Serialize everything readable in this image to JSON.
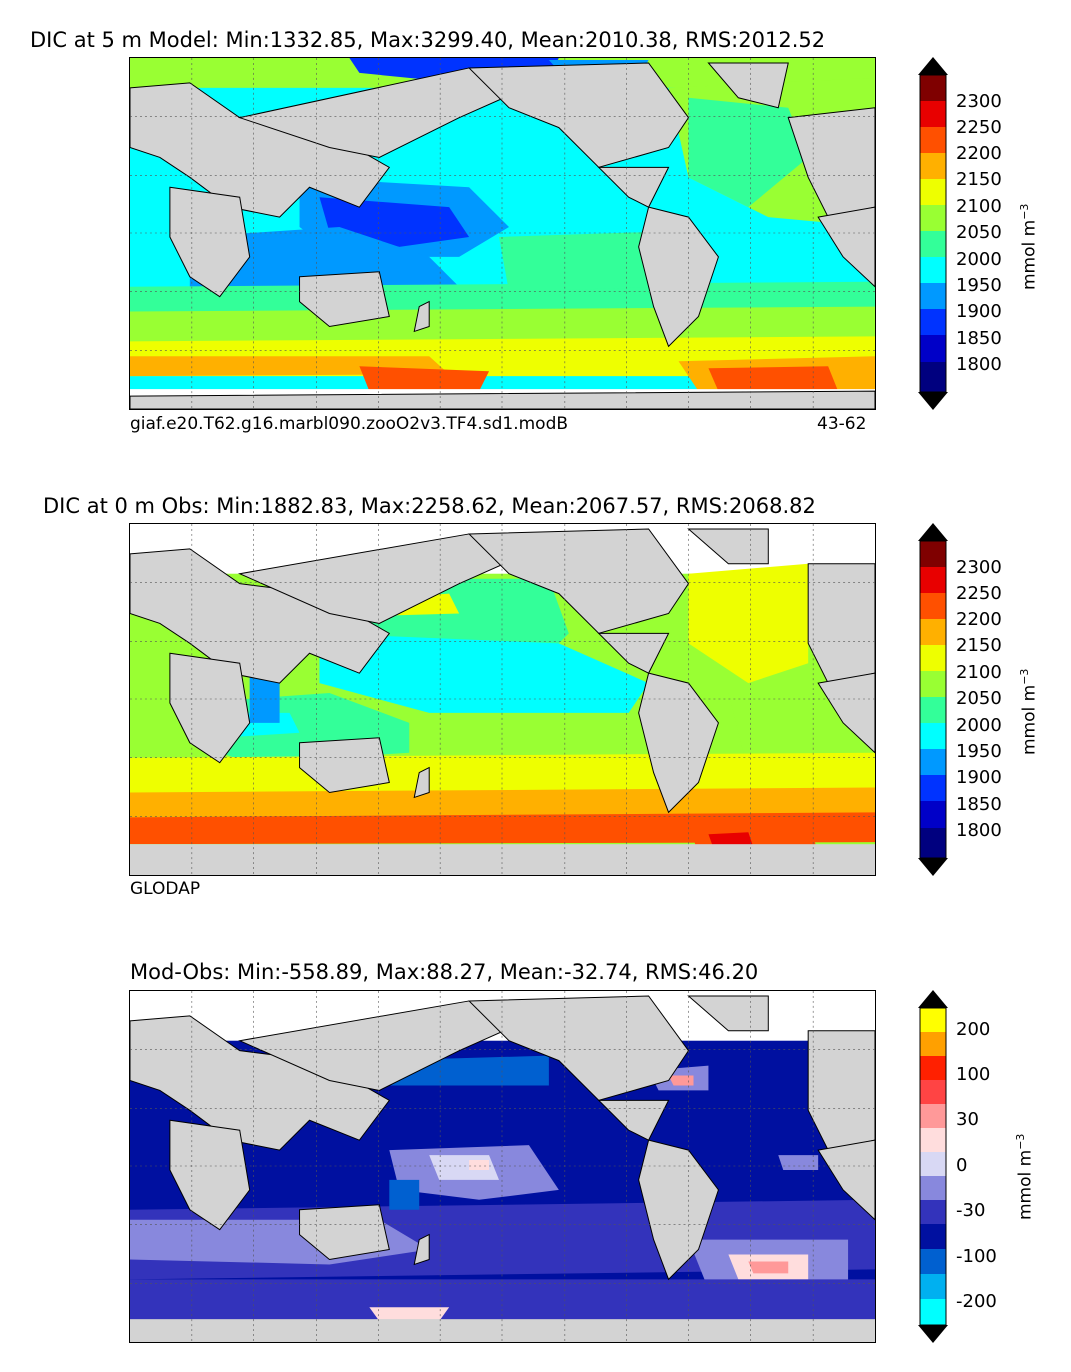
{
  "panels": [
    {
      "title": "DIC at 5 m Model: Min:1332.85, Max:3299.40, Mean:2010.38, RMS:2012.52",
      "caption_left": "giaf.e20.T62.g16.marbl090.zooO2v3.TF4.sd1.modB",
      "caption_right": "43-62",
      "colorbar": {
        "ticks": [
          "2300",
          "2250",
          "2200",
          "2150",
          "2100",
          "2050",
          "2000",
          "1950",
          "1900",
          "1850",
          "1800"
        ],
        "unit": "mmol m",
        "unit_exp": "−3"
      }
    },
    {
      "title": "DIC at 0 m Obs: Min:1882.83, Max:2258.62, Mean:2067.57, RMS:2068.82",
      "caption_left": "GLODAP",
      "caption_right": "",
      "colorbar": {
        "ticks": [
          "2300",
          "2250",
          "2200",
          "2150",
          "2100",
          "2050",
          "2000",
          "1950",
          "1900",
          "1850",
          "1800"
        ],
        "unit": "mmol m",
        "unit_exp": "−3"
      }
    },
    {
      "title": "Mod-Obs: Min:-558.89, Max:88.27, Mean:-32.74, RMS:46.20",
      "caption_left": "",
      "caption_right": "",
      "colorbar": {
        "ticks": [
          "200",
          "100",
          "30",
          "0",
          "-30",
          "-100",
          "-200"
        ],
        "unit": "mmol m",
        "unit_exp": "−3"
      }
    }
  ],
  "colors": {
    "land": "#d3d3d3",
    "dic_scale": [
      "#00007f",
      "#0000c8",
      "#0033ff",
      "#0099ff",
      "#00ffff",
      "#33ff99",
      "#99ff33",
      "#eeff00",
      "#ffb000",
      "#ff5000",
      "#e80000",
      "#7f0000"
    ],
    "diff_scale": [
      "#00ffff",
      "#00b0f0",
      "#0060d0",
      "#0010a0",
      "#3333bb",
      "#8888dd",
      "#d8d8f4",
      "#ffdddd",
      "#ff9999",
      "#ff4444",
      "#ff2000",
      "#ffa000",
      "#ffff00"
    ]
  }
}
